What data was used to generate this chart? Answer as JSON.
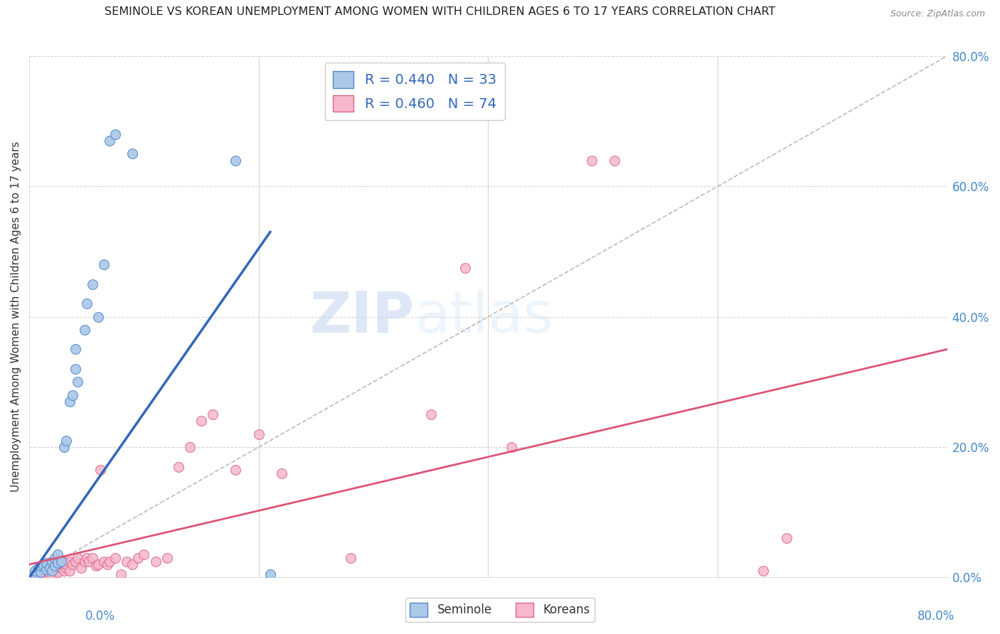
{
  "title": "SEMINOLE VS KOREAN UNEMPLOYMENT AMONG WOMEN WITH CHILDREN AGES 6 TO 17 YEARS CORRELATION CHART",
  "source": "Source: ZipAtlas.com",
  "ylabel": "Unemployment Among Women with Children Ages 6 to 17 years",
  "xlim": [
    0.0,
    0.8
  ],
  "ylim": [
    0.0,
    0.8
  ],
  "yticks": [
    0.0,
    0.2,
    0.4,
    0.6,
    0.8
  ],
  "seminole_color": "#aac8e8",
  "korean_color": "#f5b8ca",
  "seminole_edge": "#5588cc",
  "korean_edge": "#dd6688",
  "trend_seminole_color": "#3366bb",
  "trend_korean_color": "#dd5577",
  "diagonal_color": "#bbbbbb",
  "watermark_zip": "ZIP",
  "watermark_atlas": "atlas",
  "legend_seminole_label": "R = 0.440   N = 33",
  "legend_korean_label": "R = 0.460   N = 74",
  "seminole_x": [
    0.005,
    0.005,
    0.008,
    0.01,
    0.01,
    0.012,
    0.015,
    0.015,
    0.018,
    0.02,
    0.02,
    0.022,
    0.022,
    0.025,
    0.025,
    0.028,
    0.03,
    0.032,
    0.035,
    0.038,
    0.04,
    0.04,
    0.042,
    0.048,
    0.05,
    0.055,
    0.06,
    0.065,
    0.07,
    0.075,
    0.09,
    0.18,
    0.21
  ],
  "seminole_y": [
    0.005,
    0.01,
    0.015,
    0.008,
    0.018,
    0.02,
    0.012,
    0.022,
    0.015,
    0.01,
    0.025,
    0.018,
    0.03,
    0.022,
    0.035,
    0.025,
    0.2,
    0.21,
    0.27,
    0.28,
    0.32,
    0.35,
    0.3,
    0.38,
    0.42,
    0.45,
    0.4,
    0.48,
    0.67,
    0.68,
    0.65,
    0.64,
    0.005
  ],
  "korean_x": [
    0.005,
    0.006,
    0.007,
    0.008,
    0.008,
    0.01,
    0.01,
    0.01,
    0.012,
    0.012,
    0.013,
    0.014,
    0.015,
    0.015,
    0.015,
    0.016,
    0.017,
    0.018,
    0.018,
    0.019,
    0.02,
    0.02,
    0.02,
    0.022,
    0.022,
    0.023,
    0.025,
    0.025,
    0.025,
    0.028,
    0.028,
    0.03,
    0.03,
    0.032,
    0.032,
    0.035,
    0.035,
    0.038,
    0.04,
    0.042,
    0.045,
    0.048,
    0.05,
    0.052,
    0.055,
    0.058,
    0.06,
    0.062,
    0.065,
    0.068,
    0.07,
    0.075,
    0.08,
    0.085,
    0.09,
    0.095,
    0.1,
    0.11,
    0.12,
    0.13,
    0.14,
    0.15,
    0.16,
    0.18,
    0.2,
    0.22,
    0.28,
    0.35,
    0.38,
    0.42,
    0.49,
    0.51,
    0.64,
    0.66
  ],
  "korean_y": [
    0.005,
    0.008,
    0.01,
    0.012,
    0.015,
    0.005,
    0.01,
    0.015,
    0.008,
    0.018,
    0.012,
    0.02,
    0.005,
    0.01,
    0.018,
    0.012,
    0.015,
    0.005,
    0.018,
    0.01,
    0.005,
    0.012,
    0.02,
    0.015,
    0.025,
    0.01,
    0.008,
    0.018,
    0.025,
    0.015,
    0.022,
    0.01,
    0.025,
    0.015,
    0.02,
    0.01,
    0.025,
    0.02,
    0.025,
    0.03,
    0.015,
    0.025,
    0.03,
    0.025,
    0.03,
    0.018,
    0.02,
    0.165,
    0.025,
    0.02,
    0.025,
    0.03,
    0.005,
    0.025,
    0.02,
    0.03,
    0.035,
    0.025,
    0.03,
    0.17,
    0.2,
    0.24,
    0.25,
    0.165,
    0.22,
    0.16,
    0.03,
    0.25,
    0.475,
    0.2,
    0.64,
    0.64,
    0.01,
    0.06
  ],
  "trend_sem_x0": 0.0,
  "trend_sem_y0": 0.0,
  "trend_sem_x1": 0.21,
  "trend_sem_y1": 0.53,
  "trend_kor_x0": 0.0,
  "trend_kor_y0": 0.02,
  "trend_kor_x1": 0.8,
  "trend_kor_y1": 0.35
}
